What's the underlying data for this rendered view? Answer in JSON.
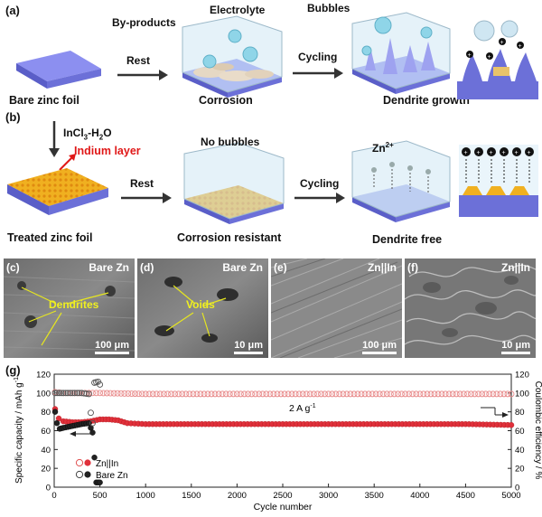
{
  "schematic": {
    "row_a": {
      "tag": "(a)",
      "labels": {
        "byproducts": "By-products",
        "electrolyte": "Electrolyte",
        "bubbles": "Bubbles"
      },
      "steps": [
        {
          "arrow": "Rest",
          "caption": "Corrosion"
        },
        {
          "arrow": "Cycling",
          "caption": "Dendrite growth"
        }
      ],
      "start_caption": "Bare zinc foil"
    },
    "row_b": {
      "tag": "(b)",
      "treatment_main": "InCl",
      "treatment_sub": "3",
      "treatment_tail": "-H",
      "treatment_sub2": "2",
      "treatment_end": "O",
      "indium_label": "Indium layer",
      "no_bubbles": "No bubbles",
      "zn_ion_main": "Zn",
      "zn_ion_sup": "2+",
      "steps": [
        {
          "arrow": "Rest",
          "caption": "Corrosion resistant"
        },
        {
          "arrow": "Cycling",
          "caption": "Dendrite free"
        }
      ],
      "start_caption": "Treated zinc foil"
    }
  },
  "sem_panels": [
    {
      "tag": "(c)",
      "title": "Bare Zn",
      "scale": "100 μm",
      "annotation": "Dendrites"
    },
    {
      "tag": "(d)",
      "title": "Bare Zn",
      "scale": "10 μm",
      "annotation": "Voids"
    },
    {
      "tag": "(e)",
      "title": "Zn||In",
      "scale": "100 μm",
      "annotation": ""
    },
    {
      "tag": "(f)",
      "title": "Zn||In",
      "scale": "10 μm",
      "annotation": ""
    }
  ],
  "colors": {
    "zinc": "#7b7fe0",
    "indium": "#f0b020",
    "zn_in_series": "#e0303a",
    "bare_series": "#222222",
    "indium_label": "#e01818"
  },
  "chart_data": {
    "tag": "(g)",
    "type": "scatter",
    "xlabel": "Cycle number",
    "ylabel_left_main": "Specific capacity / mAh g",
    "ylabel_left_sup": "-1",
    "ylabel_right": "Coulombic efficiency / %",
    "annotation_main": "2 A g",
    "annotation_sup": "-1",
    "xlim": [
      0,
      5000
    ],
    "ylim_left": [
      0,
      120
    ],
    "ylim_right": [
      0,
      120
    ],
    "x_ticks": [
      "0",
      "500",
      "1000",
      "1500",
      "2000",
      "2500",
      "3000",
      "3500",
      "4000",
      "4500",
      "5000"
    ],
    "y_ticks_left": [
      "0",
      "20",
      "40",
      "60",
      "80",
      "100",
      "120"
    ],
    "y_ticks_right": [
      "0",
      "20",
      "40",
      "60",
      "80",
      "100",
      "120"
    ],
    "legend": [
      "Zn||In",
      "Bare Zn"
    ],
    "series": [
      {
        "name": "Zn||In",
        "kind": "capacity",
        "points": [
          [
            10,
            83
          ],
          [
            50,
            73
          ],
          [
            100,
            70
          ],
          [
            200,
            69
          ],
          [
            300,
            69
          ],
          [
            400,
            70
          ],
          [
            500,
            72
          ],
          [
            600,
            72
          ],
          [
            700,
            71
          ],
          [
            800,
            68
          ],
          [
            1000,
            67
          ],
          [
            1500,
            67
          ],
          [
            2000,
            67
          ],
          [
            2500,
            67
          ],
          [
            3000,
            67
          ],
          [
            3500,
            67
          ],
          [
            4000,
            67
          ],
          [
            4500,
            67
          ],
          [
            5000,
            66
          ]
        ]
      },
      {
        "name": "Zn||In",
        "kind": "efficiency",
        "points": [
          [
            10,
            101
          ],
          [
            100,
            100
          ],
          [
            300,
            100
          ],
          [
            500,
            100
          ],
          [
            1000,
            99
          ],
          [
            2000,
            99
          ],
          [
            3000,
            99
          ],
          [
            4000,
            99
          ],
          [
            5000,
            99
          ]
        ]
      },
      {
        "name": "Bare Zn",
        "kind": "capacity",
        "points": [
          [
            10,
            80
          ],
          [
            30,
            68
          ],
          [
            60,
            62
          ],
          [
            100,
            63
          ],
          [
            200,
            65
          ],
          [
            300,
            67
          ],
          [
            380,
            68
          ],
          [
            420,
            58
          ],
          [
            460,
            5
          ],
          [
            500,
            5
          ]
        ]
      },
      {
        "name": "Bare Zn",
        "kind": "efficiency",
        "points": [
          [
            10,
            100
          ],
          [
            100,
            100
          ],
          [
            200,
            100
          ],
          [
            300,
            100
          ],
          [
            380,
            99
          ],
          [
            400,
            79
          ],
          [
            420,
            68
          ],
          [
            440,
            111
          ],
          [
            480,
            112
          ],
          [
            500,
            109
          ]
        ]
      }
    ]
  }
}
